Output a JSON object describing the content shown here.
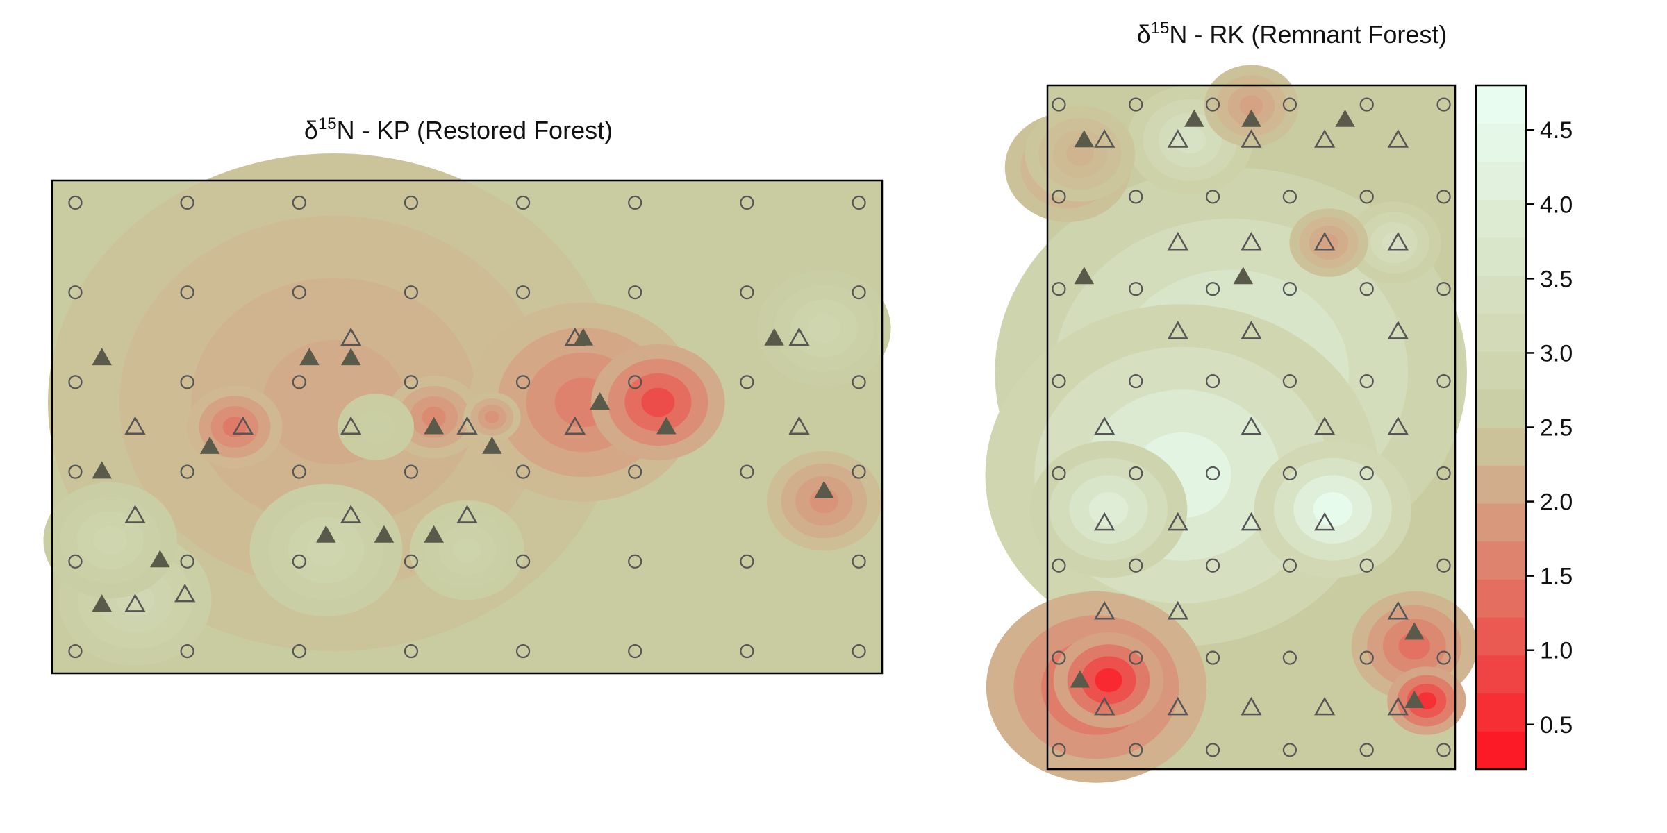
{
  "chart_data": [
    {
      "type": "heatmap",
      "title_prefix": "δ",
      "title_superscript": "15",
      "title_main": "N - KP (Restored Forest)",
      "xlabel": "",
      "ylabel": "",
      "grid": false,
      "grid_circles": {
        "columns": 8,
        "rows": 6
      },
      "hotspots": [
        {
          "x": 0.73,
          "y": 0.55,
          "value": 0.95,
          "radius": 0.07
        },
        {
          "x": 0.64,
          "y": 0.55,
          "value": 1.6,
          "radius": 0.12
        },
        {
          "x": 0.22,
          "y": 0.5,
          "value": 1.5,
          "radius": 0.05
        },
        {
          "x": 0.46,
          "y": 0.52,
          "value": 1.7,
          "radius": 0.05
        },
        {
          "x": 0.53,
          "y": 0.52,
          "value": 1.8,
          "radius": 0.03
        },
        {
          "x": 0.93,
          "y": 0.35,
          "value": 1.8,
          "radius": 0.06
        },
        {
          "x": 0.34,
          "y": 0.55,
          "value": 2.1,
          "radius": 0.3
        },
        {
          "x": 0.07,
          "y": 0.27,
          "value": 2.9,
          "radius": 0.07
        },
        {
          "x": 0.1,
          "y": 0.15,
          "value": 3.0,
          "radius": 0.08
        },
        {
          "x": 0.33,
          "y": 0.25,
          "value": 2.9,
          "radius": 0.08
        },
        {
          "x": 0.5,
          "y": 0.25,
          "value": 2.8,
          "radius": 0.06
        },
        {
          "x": 0.93,
          "y": 0.7,
          "value": 2.9,
          "radius": 0.07
        },
        {
          "x": 0.39,
          "y": 0.5,
          "value": 2.6,
          "radius": 0.04
        }
      ],
      "filled_triangles": [
        [
          0.06,
          0.64
        ],
        [
          0.31,
          0.64
        ],
        [
          0.36,
          0.64
        ],
        [
          0.64,
          0.68
        ],
        [
          0.87,
          0.68
        ],
        [
          0.66,
          0.55
        ],
        [
          0.46,
          0.5
        ],
        [
          0.19,
          0.46
        ],
        [
          0.53,
          0.46
        ],
        [
          0.74,
          0.5
        ],
        [
          0.06,
          0.41
        ],
        [
          0.93,
          0.37
        ],
        [
          0.33,
          0.28
        ],
        [
          0.46,
          0.28
        ],
        [
          0.4,
          0.28
        ],
        [
          0.13,
          0.23
        ],
        [
          0.06,
          0.14
        ]
      ],
      "open_triangles": [
        [
          0.36,
          0.68
        ],
        [
          0.63,
          0.68
        ],
        [
          0.9,
          0.68
        ],
        [
          0.23,
          0.5
        ],
        [
          0.36,
          0.5
        ],
        [
          0.5,
          0.5
        ],
        [
          0.63,
          0.5
        ],
        [
          0.9,
          0.5
        ],
        [
          0.1,
          0.5
        ],
        [
          0.1,
          0.32
        ],
        [
          0.36,
          0.32
        ],
        [
          0.5,
          0.32
        ],
        [
          0.16,
          0.16
        ],
        [
          0.1,
          0.14
        ]
      ]
    },
    {
      "type": "heatmap",
      "title_prefix": "δ",
      "title_superscript": "15",
      "title_main": "N - RK (Remnant Forest)",
      "xlabel": "",
      "ylabel": "",
      "grid": false,
      "grid_circles": {
        "columns": 6,
        "rows": 8
      },
      "hotspots": [
        {
          "x": 0.33,
          "y": 0.43,
          "value": 4.3,
          "radius": 0.25
        },
        {
          "x": 0.45,
          "y": 0.58,
          "value": 4.0,
          "radius": 0.3
        },
        {
          "x": 0.7,
          "y": 0.38,
          "value": 4.6,
          "radius": 0.1
        },
        {
          "x": 0.15,
          "y": 0.38,
          "value": 4.0,
          "radius": 0.1
        },
        {
          "x": 0.35,
          "y": 0.92,
          "value": 3.5,
          "radius": 0.08
        },
        {
          "x": 0.85,
          "y": 0.77,
          "value": 3.4,
          "radius": 0.06
        },
        {
          "x": 0.15,
          "y": 0.13,
          "value": 0.5,
          "radius": 0.07
        },
        {
          "x": 0.12,
          "y": 0.12,
          "value": 1.2,
          "radius": 0.14
        },
        {
          "x": 0.93,
          "y": 0.1,
          "value": 0.6,
          "radius": 0.05
        },
        {
          "x": 0.9,
          "y": 0.18,
          "value": 1.4,
          "radius": 0.08
        },
        {
          "x": 0.69,
          "y": 0.77,
          "value": 2.0,
          "radius": 0.05
        },
        {
          "x": 0.5,
          "y": 0.97,
          "value": 2.0,
          "radius": 0.06
        },
        {
          "x": 0.05,
          "y": 0.88,
          "value": 2.0,
          "radius": 0.08
        },
        {
          "x": 0.08,
          "y": 0.9,
          "value": 2.2,
          "radius": 0.07
        }
      ],
      "filled_triangles": [
        [
          0.08,
          0.13
        ],
        [
          0.9,
          0.1
        ],
        [
          0.9,
          0.2
        ],
        [
          0.09,
          0.72
        ],
        [
          0.48,
          0.72
        ],
        [
          0.09,
          0.92
        ],
        [
          0.36,
          0.95
        ],
        [
          0.5,
          0.95
        ],
        [
          0.73,
          0.95
        ]
      ],
      "open_triangles": [
        [
          0.14,
          0.92
        ],
        [
          0.32,
          0.92
        ],
        [
          0.5,
          0.92
        ],
        [
          0.68,
          0.92
        ],
        [
          0.86,
          0.92
        ],
        [
          0.32,
          0.77
        ],
        [
          0.5,
          0.77
        ],
        [
          0.68,
          0.77
        ],
        [
          0.86,
          0.77
        ],
        [
          0.32,
          0.64
        ],
        [
          0.5,
          0.64
        ],
        [
          0.86,
          0.64
        ],
        [
          0.14,
          0.5
        ],
        [
          0.5,
          0.5
        ],
        [
          0.68,
          0.5
        ],
        [
          0.86,
          0.5
        ],
        [
          0.14,
          0.36
        ],
        [
          0.32,
          0.36
        ],
        [
          0.5,
          0.36
        ],
        [
          0.68,
          0.36
        ],
        [
          0.14,
          0.23
        ],
        [
          0.32,
          0.23
        ],
        [
          0.86,
          0.23
        ],
        [
          0.14,
          0.09
        ],
        [
          0.32,
          0.09
        ],
        [
          0.5,
          0.09
        ],
        [
          0.68,
          0.09
        ],
        [
          0.86,
          0.09
        ]
      ]
    }
  ],
  "legend": {
    "ticks": [
      "0.5",
      "1.0",
      "1.5",
      "2.0",
      "2.5",
      "3.0",
      "3.5",
      "4.0",
      "4.5"
    ],
    "tick_values": [
      0.5,
      1.0,
      1.5,
      2.0,
      2.5,
      3.0,
      3.5,
      4.0,
      4.5
    ],
    "min": 0.2,
    "max": 4.8,
    "levels": 18
  },
  "colors": {
    "background": "#ffffff",
    "frame": "#000000",
    "marker": "#555555",
    "filled_marker": "#5a5a4a",
    "scale_low": "#ff1020",
    "scale_mid": "#c9cca0",
    "scale_high": "#eafff4"
  }
}
